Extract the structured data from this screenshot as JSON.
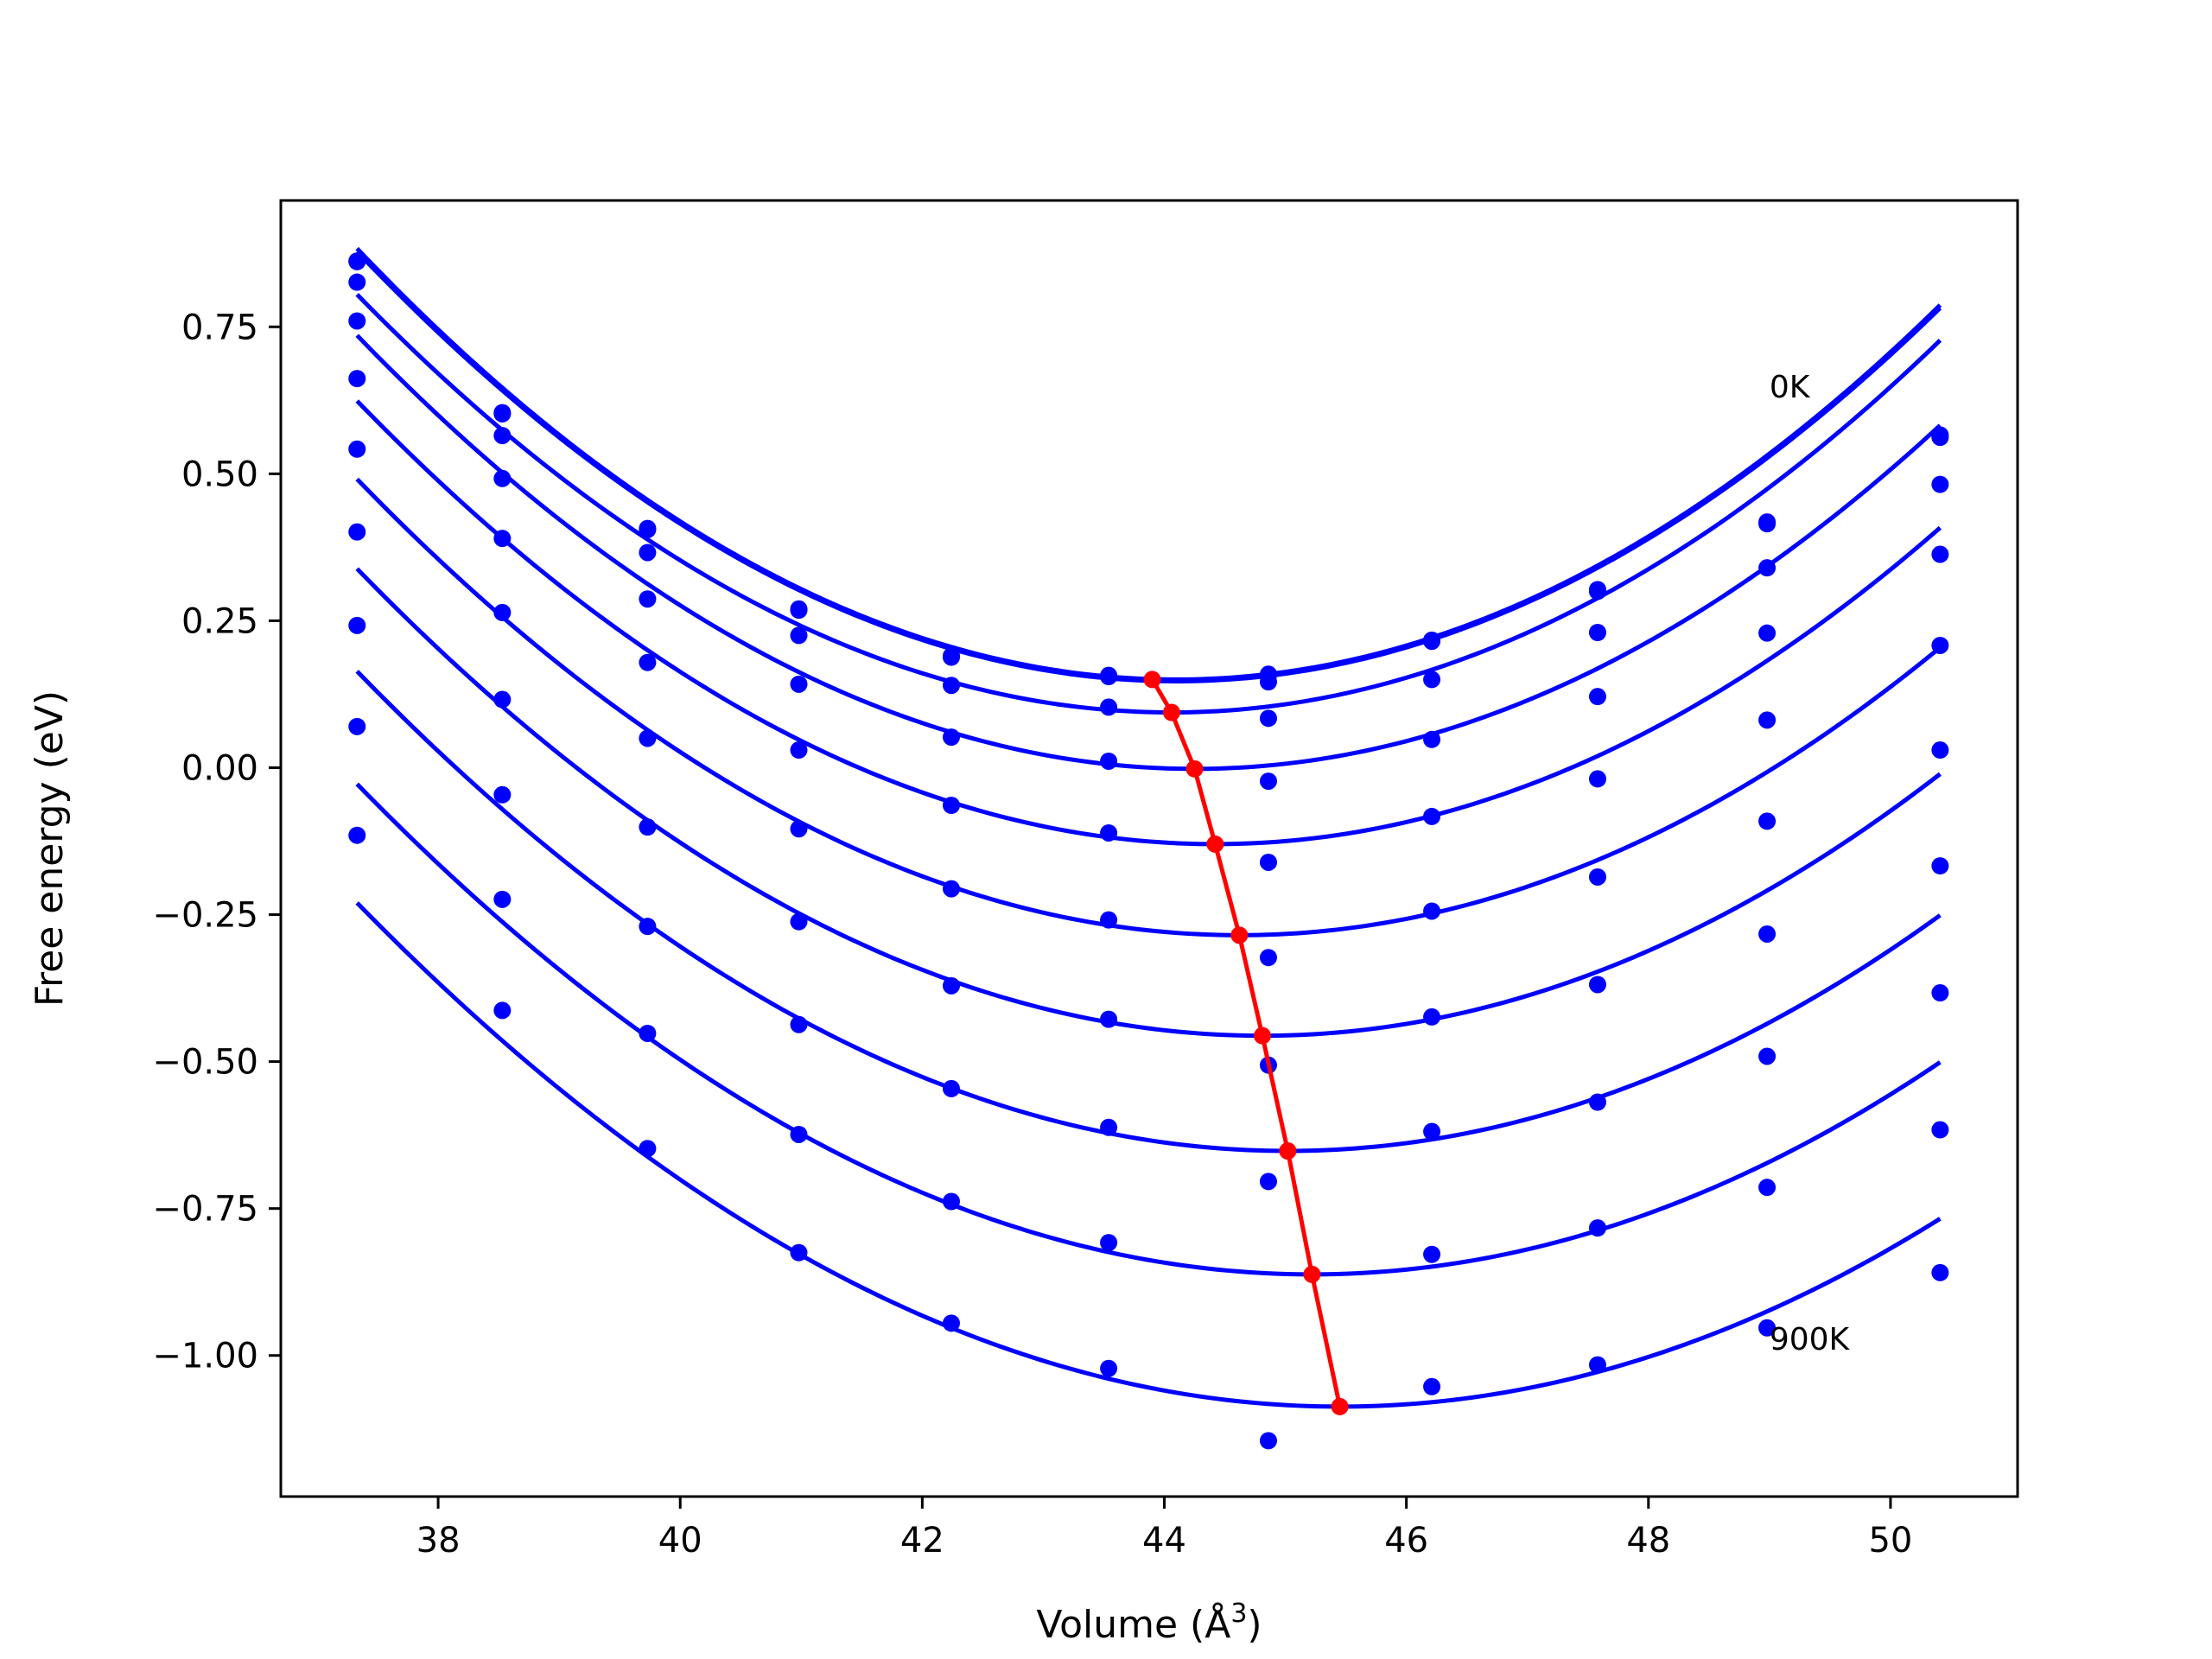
{
  "chart_data": {
    "type": "line",
    "xlabel": "Volume (Å",
    "xlabel_superscript": "3",
    "xlabel_suffix": ")",
    "ylabel": "Free energy (eV)",
    "xlim": [
      36.7,
      51.05
    ],
    "ylim": [
      -1.24,
      0.965
    ],
    "x_ticks": [
      38,
      40,
      42,
      44,
      46,
      48,
      50
    ],
    "x_tick_labels": [
      "38",
      "40",
      "42",
      "44",
      "46",
      "48",
      "50"
    ],
    "y_ticks": [
      -1.0,
      -0.75,
      -0.5,
      -0.25,
      0.0,
      0.25,
      0.5,
      0.75
    ],
    "y_tick_labels": [
      "−1.00",
      "−0.75",
      "−0.50",
      "−0.25",
      "0.00",
      "0.25",
      "0.50",
      "0.75"
    ],
    "grid": false,
    "legend": "none",
    "annotations": [
      {
        "text": "0K",
        "x": 49.0,
        "y": 0.63
      },
      {
        "text": "900K",
        "x": 49.0,
        "y": -0.99
      }
    ],
    "colors": {
      "curves": "#0000ff",
      "minimum_path": "#ff0000"
    },
    "x": [
      37.33,
      38.53,
      39.73,
      40.98,
      42.24,
      43.54,
      44.86,
      46.21,
      47.58,
      48.98,
      50.41
    ],
    "series": [
      {
        "values": [
          0.862,
          0.604,
          0.407,
          0.27,
          0.19,
          0.157,
          0.159,
          0.217,
          0.303,
          0.418,
          0.566
        ]
      },
      {
        "values": [
          0.861,
          0.602,
          0.405,
          0.268,
          0.188,
          0.155,
          0.157,
          0.215,
          0.3,
          0.415,
          0.562
        ]
      },
      {
        "values": [
          0.826,
          0.565,
          0.366,
          0.225,
          0.14,
          0.103,
          0.146,
          0.15,
          0.23,
          0.34,
          0.482
        ]
      },
      {
        "values": [
          0.76,
          0.492,
          0.287,
          0.142,
          0.052,
          0.011,
          0.084,
          0.048,
          0.121,
          0.229,
          0.363
        ]
      },
      {
        "values": [
          0.662,
          0.39,
          0.179,
          0.03,
          -0.064,
          -0.111,
          -0.023,
          -0.083,
          -0.019,
          0.081,
          0.208
        ]
      },
      {
        "values": [
          0.542,
          0.264,
          0.05,
          -0.104,
          -0.206,
          -0.259,
          -0.161,
          -0.244,
          -0.186,
          -0.091,
          0.03
        ]
      },
      {
        "values": [
          0.401,
          0.116,
          -0.101,
          -0.262,
          -0.371,
          -0.428,
          -0.323,
          -0.424,
          -0.369,
          -0.283,
          -0.167
        ]
      },
      {
        "values": [
          0.242,
          -0.046,
          -0.27,
          -0.437,
          -0.546,
          -0.612,
          -0.506,
          -0.619,
          -0.569,
          -0.491,
          -0.383
        ]
      },
      {
        "values": [
          0.07,
          -0.224,
          -0.452,
          -0.624,
          -0.738,
          -0.808,
          -0.704,
          -0.828,
          -0.783,
          -0.714,
          -0.616
        ]
      },
      {
        "values": [
          -0.115,
          -0.413,
          -0.648,
          -0.825,
          -0.945,
          -1.022,
          -1.145,
          -1.053,
          -1.016,
          -0.953,
          -0.859
        ]
      }
    ],
    "fits": [
      {
        "a": 0.016,
        "v0": 44.1,
        "e0": 0.15
      },
      {
        "a": 0.01595,
        "v0": 44.1,
        "e0": 0.147
      },
      {
        "a": 0.0157,
        "v0": 44.06,
        "e0": 0.094
      },
      {
        "a": 0.0154,
        "v0": 44.25,
        "e0": -0.002
      },
      {
        "a": 0.015,
        "v0": 44.42,
        "e0": -0.13
      },
      {
        "a": 0.0146,
        "v0": 44.62,
        "e0": -0.285
      },
      {
        "a": 0.0142,
        "v0": 44.81,
        "e0": -0.456
      },
      {
        "a": 0.0138,
        "v0": 45.02,
        "e0": -0.652
      },
      {
        "a": 0.0134,
        "v0": 45.22,
        "e0": -0.862
      },
      {
        "a": 0.013,
        "v0": 45.45,
        "e0": -1.087
      }
    ],
    "minimum_path": {
      "x": [
        43.9,
        44.06,
        44.25,
        44.42,
        44.62,
        44.81,
        45.02,
        45.22,
        45.45
      ],
      "y": [
        0.15,
        0.094,
        -0.002,
        -0.13,
        -0.285,
        -0.456,
        -0.652,
        -0.862,
        -1.087
      ]
    }
  }
}
